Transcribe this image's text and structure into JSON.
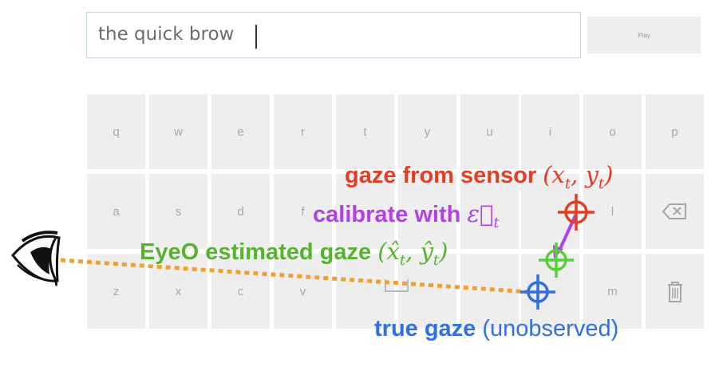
{
  "text_field": {
    "value": "the quick brow"
  },
  "play_button": {
    "label": "Play"
  },
  "keyboard": {
    "rows": [
      [
        "q",
        "w",
        "e",
        "r",
        "t",
        "y",
        "u",
        "i",
        "o",
        "p"
      ],
      [
        "a",
        "s",
        "d",
        "f",
        "",
        "",
        "",
        "",
        "l",
        "backspace"
      ],
      [
        "z",
        "x",
        "c",
        "v",
        "",
        "",
        "",
        "",
        "m",
        "trash"
      ]
    ]
  },
  "annotations": {
    "sensor": {
      "text": "gaze from sensor ",
      "math": "(x",
      "sub1": "t",
      "mid": ", y",
      "sub2": "t",
      "end": ")",
      "color": "#e03e25"
    },
    "calibrate": {
      "text": "calibrate with ",
      "math": "ε⃗",
      "sub": "t",
      "color": "#b140e8"
    },
    "eyeo": {
      "text": "EyeO estimated gaze ",
      "math": "(x̂",
      "sub1": "t",
      "mid": ", ŷ",
      "sub2": "t",
      "end": ")",
      "color": "#56b32f"
    },
    "true_gaze": {
      "text": "true gaze ",
      "note": "(unobserved)",
      "color": "#2f6fe0"
    }
  },
  "colors": {
    "gaze_line": "#f0a030",
    "key_bg": "#eeeeee",
    "field_border": "#c5d5e6"
  },
  "icons": {
    "eye": "eye-icon",
    "sensor_marker": "crosshair-icon",
    "estimate_marker": "crosshair-icon",
    "true_marker": "crosshair-icon"
  }
}
